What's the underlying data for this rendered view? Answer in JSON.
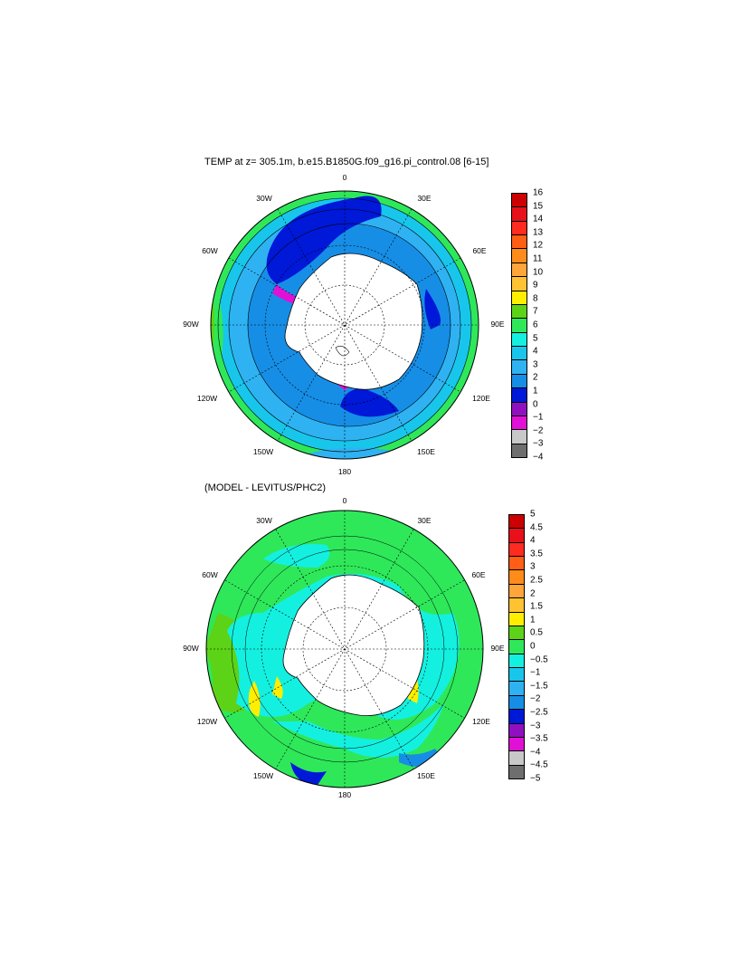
{
  "panels": [
    {
      "id": "top",
      "title": "TEMP at z= 305.1m, b.e15.B1850G.f09_g16.pi_control.08 [6-15]",
      "lon_labels": [
        "0",
        "30E",
        "60E",
        "90E",
        "120E",
        "150E",
        "180",
        "150W",
        "120W",
        "90W",
        "60W",
        "30W"
      ],
      "colorbar": {
        "ticks": [
          "16",
          "15",
          "14",
          "13",
          "12",
          "11",
          "10",
          "9",
          "8",
          "7",
          "6",
          "5",
          "4",
          "3",
          "2",
          "1",
          "0",
          "−1",
          "−2",
          "−3",
          "−4"
        ],
        "colors": [
          "#cc0000",
          "#e8101a",
          "#ff2a20",
          "#ff5e14",
          "#ff8c1a",
          "#ffa53a",
          "#ffc233",
          "#ffee00",
          "#5cd317",
          "#2ee85a",
          "#14f0e0",
          "#18c6ec",
          "#2fb2f2",
          "#168ee6",
          "#0018d8",
          "#9010c0",
          "#e010d6",
          "#c8c8c8",
          "#6e6e6e"
        ]
      }
    },
    {
      "id": "bottom",
      "title": "(MODEL - LEVITUS/PHC2)",
      "lon_labels": [
        "0",
        "30E",
        "60E",
        "90E",
        "120E",
        "150E",
        "180",
        "150W",
        "120W",
        "90W",
        "60W",
        "30W"
      ],
      "colorbar": {
        "ticks": [
          "5",
          "4.5",
          "4",
          "3.5",
          "3",
          "2.5",
          "2",
          "1.5",
          "1",
          "0.5",
          "0",
          "−0.5",
          "−1",
          "−1.5",
          "−2",
          "−2.5",
          "−3",
          "−3.5",
          "−4",
          "−4.5",
          "−5"
        ],
        "colors": [
          "#cc0000",
          "#e8101a",
          "#ff2a20",
          "#ff5e14",
          "#ff8c1a",
          "#ffa53a",
          "#ffc233",
          "#ffee00",
          "#5cd317",
          "#2ee85a",
          "#14f0e0",
          "#18c6ec",
          "#2fb2f2",
          "#168ee6",
          "#0018d8",
          "#9010c0",
          "#e010d6",
          "#c8c8c8",
          "#6e6e6e"
        ]
      }
    }
  ]
}
